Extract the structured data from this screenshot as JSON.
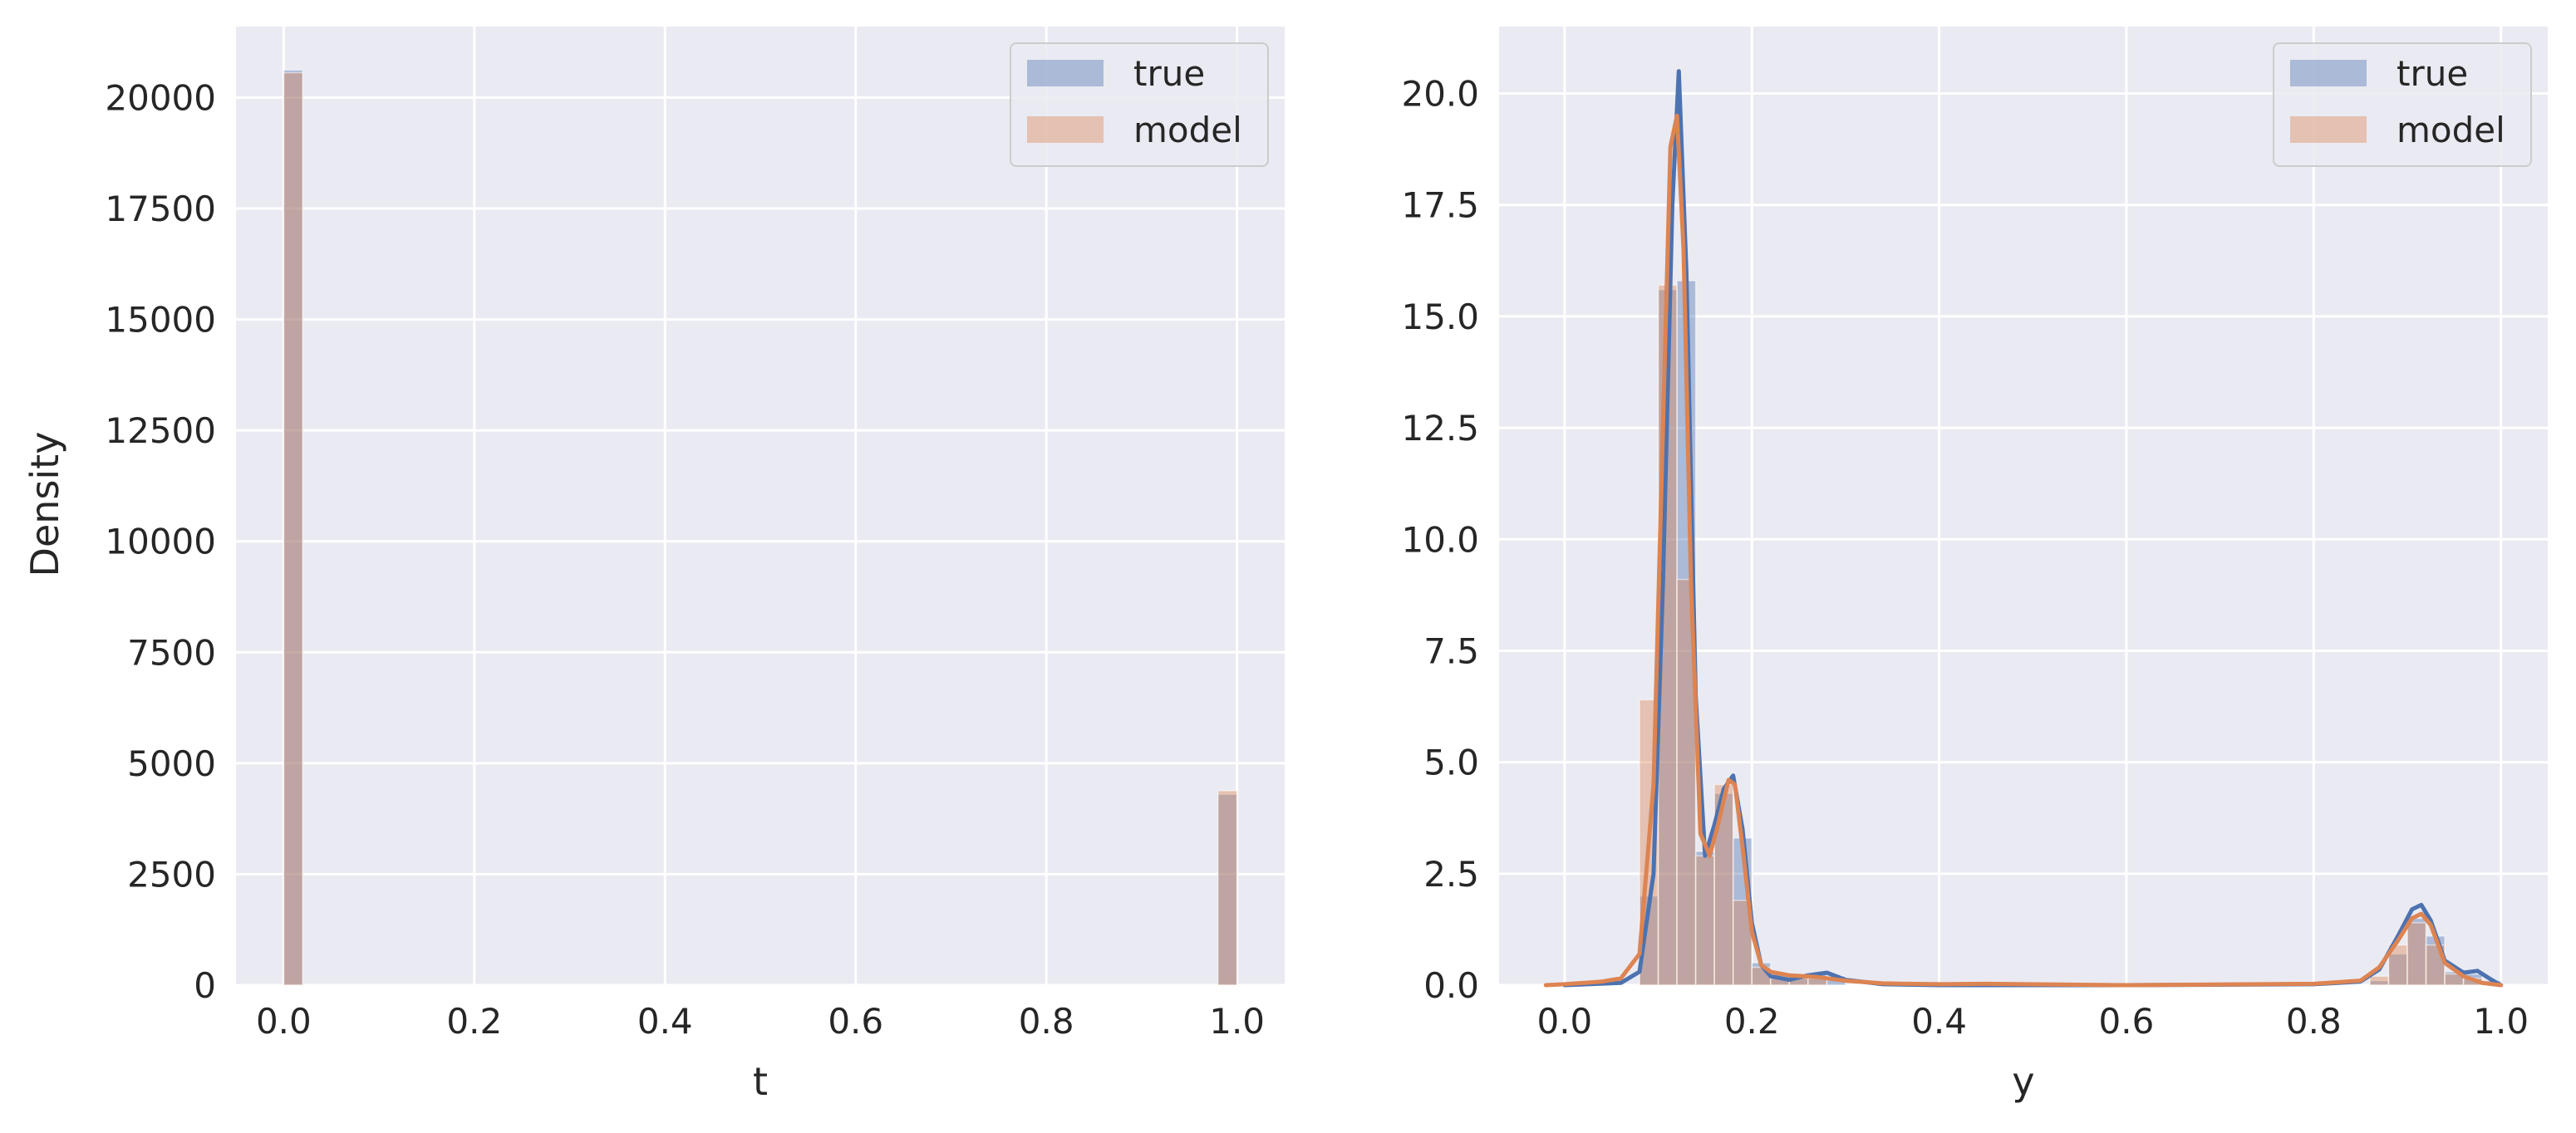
{
  "chart_data": [
    {
      "type": "histogram",
      "xlabel": "t",
      "ylabel": "Density",
      "xlim": [
        -0.05,
        1.05
      ],
      "ylim": [
        0,
        21600
      ],
      "xticks": [
        0.0,
        0.2,
        0.4,
        0.6,
        0.8,
        1.0
      ],
      "xtick_labels": [
        "0.0",
        "0.2",
        "0.4",
        "0.6",
        "0.8",
        "1.0"
      ],
      "yticks": [
        0,
        2500,
        5000,
        7500,
        10000,
        12500,
        15000,
        17500,
        20000
      ],
      "ytick_labels": [
        "0",
        "2500",
        "5000",
        "7500",
        "10000",
        "12500",
        "15000",
        "17500",
        "20000"
      ],
      "grid": true,
      "legend": {
        "placement": "upper-right",
        "entries": [
          "true",
          "model"
        ]
      },
      "series": [
        {
          "name": "true",
          "color": "#4c72b0",
          "opacity": 0.4,
          "bins": [
            {
              "x0": 0.0,
              "x1": 0.02,
              "value": 20620
            },
            {
              "x0": 0.98,
              "x1": 1.0,
              "value": 4300
            }
          ]
        },
        {
          "name": "model",
          "color": "#dd8452",
          "opacity": 0.4,
          "bins": [
            {
              "x0": 0.0,
              "x1": 0.02,
              "value": 20560
            },
            {
              "x0": 0.98,
              "x1": 1.0,
              "value": 4380
            }
          ]
        }
      ]
    },
    {
      "type": "histogram",
      "xlabel": "y",
      "ylabel": "",
      "xlim": [
        -0.07,
        1.05
      ],
      "ylim": [
        0,
        21.5
      ],
      "xticks": [
        0.0,
        0.2,
        0.4,
        0.6,
        0.8,
        1.0
      ],
      "xtick_labels": [
        "0.0",
        "0.2",
        "0.4",
        "0.6",
        "0.8",
        "1.0"
      ],
      "yticks": [
        0.0,
        2.5,
        5.0,
        7.5,
        10.0,
        12.5,
        15.0,
        17.5,
        20.0
      ],
      "ytick_labels": [
        "0.0",
        "2.5",
        "5.0",
        "7.5",
        "10.0",
        "12.5",
        "15.0",
        "17.5",
        "20.0"
      ],
      "grid": true,
      "legend": {
        "placement": "upper-right",
        "entries": [
          "true",
          "model"
        ]
      },
      "bin_width": 0.02,
      "series": [
        {
          "name": "true",
          "color": "#4c72b0",
          "opacity": 0.4,
          "bins": [
            {
              "x0": 0.08,
              "x1": 0.1,
              "value": 2.0
            },
            {
              "x0": 0.1,
              "x1": 0.12,
              "value": 15.6
            },
            {
              "x0": 0.12,
              "x1": 0.14,
              "value": 15.8
            },
            {
              "x0": 0.14,
              "x1": 0.16,
              "value": 3.0
            },
            {
              "x0": 0.16,
              "x1": 0.18,
              "value": 4.3
            },
            {
              "x0": 0.18,
              "x1": 0.2,
              "value": 3.3
            },
            {
              "x0": 0.2,
              "x1": 0.22,
              "value": 0.5
            },
            {
              "x0": 0.22,
              "x1": 0.24,
              "value": 0.15
            },
            {
              "x0": 0.24,
              "x1": 0.26,
              "value": 0.15
            },
            {
              "x0": 0.26,
              "x1": 0.28,
              "value": 0.25
            },
            {
              "x0": 0.28,
              "x1": 0.3,
              "value": 0.2
            },
            {
              "x0": 0.86,
              "x1": 0.88,
              "value": 0.1
            },
            {
              "x0": 0.88,
              "x1": 0.9,
              "value": 0.7
            },
            {
              "x0": 0.9,
              "x1": 0.92,
              "value": 1.5
            },
            {
              "x0": 0.92,
              "x1": 0.94,
              "value": 1.1
            },
            {
              "x0": 0.94,
              "x1": 0.96,
              "value": 0.3
            },
            {
              "x0": 0.96,
              "x1": 0.98,
              "value": 0.25
            },
            {
              "x0": 0.98,
              "x1": 1.0,
              "value": 0.1
            }
          ],
          "kde": {
            "x": [
              0.0,
              0.06,
              0.08,
              0.095,
              0.105,
              0.115,
              0.122,
              0.13,
              0.14,
              0.15,
              0.16,
              0.17,
              0.18,
              0.19,
              0.2,
              0.21,
              0.22,
              0.24,
              0.26,
              0.28,
              0.3,
              0.34,
              0.4,
              0.6,
              0.8,
              0.85,
              0.87,
              0.89,
              0.905,
              0.915,
              0.925,
              0.94,
              0.96,
              0.975,
              0.99,
              1.0
            ],
            "y": [
              0.0,
              0.05,
              0.3,
              2.5,
              9.0,
              17.5,
              20.5,
              16.0,
              6.5,
              2.9,
              3.6,
              4.4,
              4.7,
              3.5,
              1.4,
              0.45,
              0.2,
              0.12,
              0.22,
              0.28,
              0.12,
              0.02,
              0.0,
              0.0,
              0.02,
              0.08,
              0.35,
              1.1,
              1.7,
              1.8,
              1.45,
              0.55,
              0.28,
              0.32,
              0.12,
              0.0
            ]
          }
        },
        {
          "name": "model",
          "color": "#dd8452",
          "opacity": 0.4,
          "bins": [
            {
              "x0": 0.08,
              "x1": 0.1,
              "value": 6.4
            },
            {
              "x0": 0.1,
              "x1": 0.12,
              "value": 15.7
            },
            {
              "x0": 0.12,
              "x1": 0.14,
              "value": 9.1
            },
            {
              "x0": 0.14,
              "x1": 0.16,
              "value": 2.9
            },
            {
              "x0": 0.16,
              "x1": 0.18,
              "value": 4.5
            },
            {
              "x0": 0.18,
              "x1": 0.2,
              "value": 1.9
            },
            {
              "x0": 0.2,
              "x1": 0.22,
              "value": 0.4
            },
            {
              "x0": 0.22,
              "x1": 0.24,
              "value": 0.25
            },
            {
              "x0": 0.24,
              "x1": 0.26,
              "value": 0.2
            },
            {
              "x0": 0.26,
              "x1": 0.28,
              "value": 0.15
            },
            {
              "x0": 0.86,
              "x1": 0.88,
              "value": 0.2
            },
            {
              "x0": 0.88,
              "x1": 0.9,
              "value": 0.9
            },
            {
              "x0": 0.9,
              "x1": 0.92,
              "value": 1.4
            },
            {
              "x0": 0.92,
              "x1": 0.94,
              "value": 0.9
            },
            {
              "x0": 0.94,
              "x1": 0.96,
              "value": 0.25
            },
            {
              "x0": 0.96,
              "x1": 0.98,
              "value": 0.15
            }
          ],
          "kde": {
            "x": [
              -0.02,
              0.0,
              0.04,
              0.06,
              0.08,
              0.095,
              0.105,
              0.113,
              0.12,
              0.127,
              0.135,
              0.145,
              0.155,
              0.165,
              0.175,
              0.182,
              0.19,
              0.2,
              0.21,
              0.22,
              0.24,
              0.27,
              0.3,
              0.34,
              0.4,
              0.45,
              0.6,
              0.8,
              0.85,
              0.87,
              0.89,
              0.905,
              0.915,
              0.925,
              0.94,
              0.96,
              0.98,
              1.0
            ],
            "y": [
              0.0,
              0.02,
              0.08,
              0.15,
              0.7,
              4.5,
              12.5,
              18.8,
              19.5,
              16.5,
              9.0,
              3.4,
              2.9,
              3.7,
              4.6,
              4.5,
              3.1,
              1.2,
              0.45,
              0.3,
              0.22,
              0.18,
              0.1,
              0.04,
              0.02,
              0.03,
              0.0,
              0.03,
              0.1,
              0.4,
              1.0,
              1.5,
              1.6,
              1.35,
              0.5,
              0.2,
              0.05,
              0.0
            ]
          }
        }
      ]
    }
  ]
}
